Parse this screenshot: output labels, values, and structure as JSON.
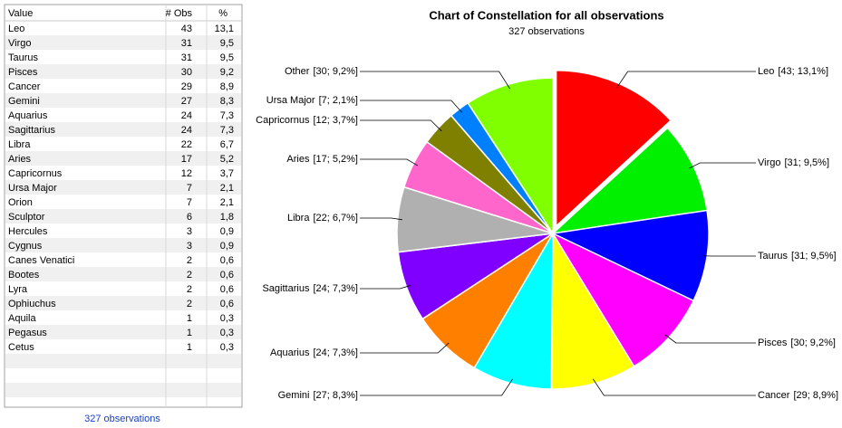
{
  "table": {
    "header": [
      "Value",
      "# Obs",
      "%"
    ],
    "rows": [
      [
        "Leo",
        43,
        "13,1"
      ],
      [
        "Virgo",
        31,
        "9,5"
      ],
      [
        "Taurus",
        31,
        "9,5"
      ],
      [
        "Pisces",
        30,
        "9,2"
      ],
      [
        "Cancer",
        29,
        "8,9"
      ],
      [
        "Gemini",
        27,
        "8,3"
      ],
      [
        "Aquarius",
        24,
        "7,3"
      ],
      [
        "Sagittarius",
        24,
        "7,3"
      ],
      [
        "Libra",
        22,
        "6,7"
      ],
      [
        "Aries",
        17,
        "5,2"
      ],
      [
        "Capricornus",
        12,
        "3,7"
      ],
      [
        "Ursa Major",
        7,
        "2,1"
      ],
      [
        "Orion",
        7,
        "2,1"
      ],
      [
        "Sculptor",
        6,
        "1,8"
      ],
      [
        "Hercules",
        3,
        "0,9"
      ],
      [
        "Cygnus",
        3,
        "0,9"
      ],
      [
        "Canes Venatici",
        2,
        "0,6"
      ],
      [
        "Bootes",
        2,
        "0,6"
      ],
      [
        "Lyra",
        2,
        "0,6"
      ],
      [
        "Ophiuchus",
        2,
        "0,6"
      ],
      [
        "Aquila",
        1,
        "0,3"
      ],
      [
        "Pegasus",
        1,
        "0,3"
      ],
      [
        "Cetus",
        1,
        "0,3"
      ]
    ],
    "footer": "327 observations"
  },
  "chart_data": {
    "type": "pie",
    "title": "Chart of Constellation for all observations",
    "subtitle": "327 observations",
    "categories": [
      "Leo",
      "Virgo",
      "Taurus",
      "Pisces",
      "Cancer",
      "Gemini",
      "Aquarius",
      "Sagittarius",
      "Libra",
      "Aries",
      "Capricornus",
      "Ursa Major",
      "Other"
    ],
    "values": [
      43,
      31,
      31,
      30,
      29,
      27,
      24,
      24,
      22,
      17,
      12,
      7,
      30
    ],
    "value_labels": [
      "[43; 13,1%]",
      "[31; 9,5%]",
      "[31; 9,5%]",
      "[30; 9,2%]",
      "[29; 8,9%]",
      "[27; 8,3%]",
      "[24; 7,3%]",
      "[24; 7,3%]",
      "[22; 6,7%]",
      "[17; 5,2%]",
      "[12; 3,7%]",
      "[7; 2,1%]",
      "[30; 9,2%]"
    ],
    "colors": [
      "#ff0000",
      "#00f000",
      "#0000ff",
      "#ff00ff",
      "#ffff00",
      "#00ffff",
      "#ff8000",
      "#8000ff",
      "#b0b0b0",
      "#ff66cc",
      "#808000",
      "#0080ff",
      "#80ff00"
    ]
  }
}
